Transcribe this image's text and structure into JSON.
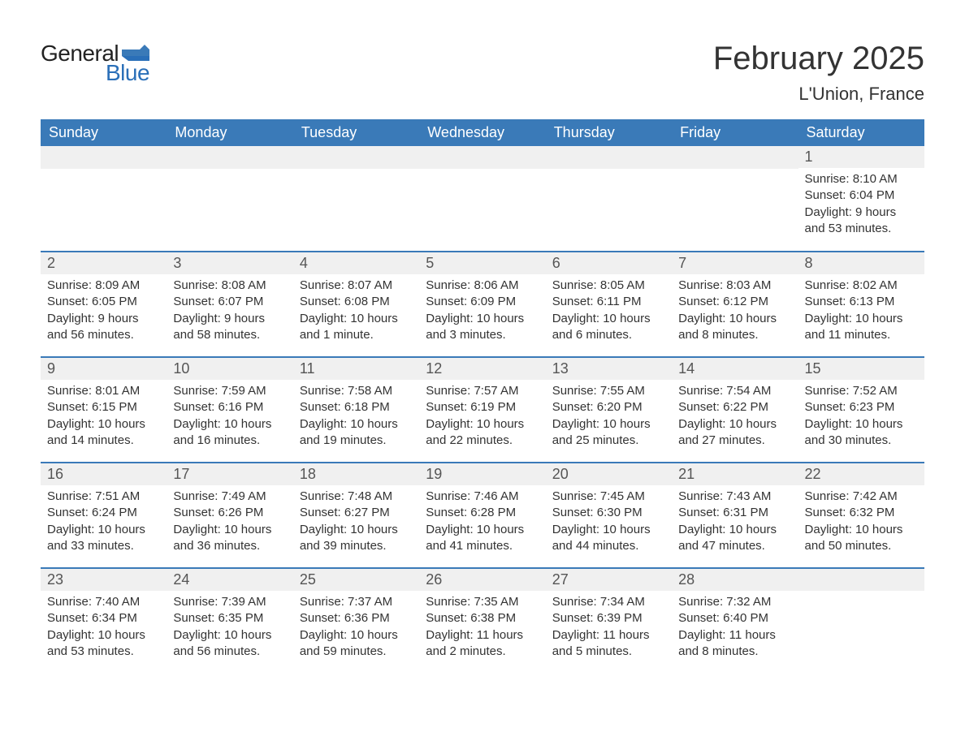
{
  "brand": {
    "word1": "General",
    "word2": "Blue",
    "text_color": "#222222",
    "accent_color": "#2a6fb8",
    "flag_color": "#3a7ab8"
  },
  "header": {
    "title": "February 2025",
    "location": "L'Union, France",
    "title_fontsize": 40,
    "location_fontsize": 22,
    "title_color": "#333333"
  },
  "calendar": {
    "type": "table",
    "columns": [
      "Sunday",
      "Monday",
      "Tuesday",
      "Wednesday",
      "Thursday",
      "Friday",
      "Saturday"
    ],
    "header_bg": "#3a7ab8",
    "header_text_color": "#ffffff",
    "header_fontsize": 18,
    "daynum_bg": "#f0f0f0",
    "daynum_color": "#555555",
    "daynum_fontsize": 18,
    "row_border_color": "#3a7ab8",
    "row_border_width": 2,
    "body_fontsize": 15,
    "body_color": "#333333",
    "background_color": "#ffffff",
    "weeks": [
      [
        null,
        null,
        null,
        null,
        null,
        null,
        {
          "d": "1",
          "sunrise": "Sunrise: 8:10 AM",
          "sunset": "Sunset: 6:04 PM",
          "day1": "Daylight: 9 hours",
          "day2": "and 53 minutes."
        }
      ],
      [
        {
          "d": "2",
          "sunrise": "Sunrise: 8:09 AM",
          "sunset": "Sunset: 6:05 PM",
          "day1": "Daylight: 9 hours",
          "day2": "and 56 minutes."
        },
        {
          "d": "3",
          "sunrise": "Sunrise: 8:08 AM",
          "sunset": "Sunset: 6:07 PM",
          "day1": "Daylight: 9 hours",
          "day2": "and 58 minutes."
        },
        {
          "d": "4",
          "sunrise": "Sunrise: 8:07 AM",
          "sunset": "Sunset: 6:08 PM",
          "day1": "Daylight: 10 hours",
          "day2": "and 1 minute."
        },
        {
          "d": "5",
          "sunrise": "Sunrise: 8:06 AM",
          "sunset": "Sunset: 6:09 PM",
          "day1": "Daylight: 10 hours",
          "day2": "and 3 minutes."
        },
        {
          "d": "6",
          "sunrise": "Sunrise: 8:05 AM",
          "sunset": "Sunset: 6:11 PM",
          "day1": "Daylight: 10 hours",
          "day2": "and 6 minutes."
        },
        {
          "d": "7",
          "sunrise": "Sunrise: 8:03 AM",
          "sunset": "Sunset: 6:12 PM",
          "day1": "Daylight: 10 hours",
          "day2": "and 8 minutes."
        },
        {
          "d": "8",
          "sunrise": "Sunrise: 8:02 AM",
          "sunset": "Sunset: 6:13 PM",
          "day1": "Daylight: 10 hours",
          "day2": "and 11 minutes."
        }
      ],
      [
        {
          "d": "9",
          "sunrise": "Sunrise: 8:01 AM",
          "sunset": "Sunset: 6:15 PM",
          "day1": "Daylight: 10 hours",
          "day2": "and 14 minutes."
        },
        {
          "d": "10",
          "sunrise": "Sunrise: 7:59 AM",
          "sunset": "Sunset: 6:16 PM",
          "day1": "Daylight: 10 hours",
          "day2": "and 16 minutes."
        },
        {
          "d": "11",
          "sunrise": "Sunrise: 7:58 AM",
          "sunset": "Sunset: 6:18 PM",
          "day1": "Daylight: 10 hours",
          "day2": "and 19 minutes."
        },
        {
          "d": "12",
          "sunrise": "Sunrise: 7:57 AM",
          "sunset": "Sunset: 6:19 PM",
          "day1": "Daylight: 10 hours",
          "day2": "and 22 minutes."
        },
        {
          "d": "13",
          "sunrise": "Sunrise: 7:55 AM",
          "sunset": "Sunset: 6:20 PM",
          "day1": "Daylight: 10 hours",
          "day2": "and 25 minutes."
        },
        {
          "d": "14",
          "sunrise": "Sunrise: 7:54 AM",
          "sunset": "Sunset: 6:22 PM",
          "day1": "Daylight: 10 hours",
          "day2": "and 27 minutes."
        },
        {
          "d": "15",
          "sunrise": "Sunrise: 7:52 AM",
          "sunset": "Sunset: 6:23 PM",
          "day1": "Daylight: 10 hours",
          "day2": "and 30 minutes."
        }
      ],
      [
        {
          "d": "16",
          "sunrise": "Sunrise: 7:51 AM",
          "sunset": "Sunset: 6:24 PM",
          "day1": "Daylight: 10 hours",
          "day2": "and 33 minutes."
        },
        {
          "d": "17",
          "sunrise": "Sunrise: 7:49 AM",
          "sunset": "Sunset: 6:26 PM",
          "day1": "Daylight: 10 hours",
          "day2": "and 36 minutes."
        },
        {
          "d": "18",
          "sunrise": "Sunrise: 7:48 AM",
          "sunset": "Sunset: 6:27 PM",
          "day1": "Daylight: 10 hours",
          "day2": "and 39 minutes."
        },
        {
          "d": "19",
          "sunrise": "Sunrise: 7:46 AM",
          "sunset": "Sunset: 6:28 PM",
          "day1": "Daylight: 10 hours",
          "day2": "and 41 minutes."
        },
        {
          "d": "20",
          "sunrise": "Sunrise: 7:45 AM",
          "sunset": "Sunset: 6:30 PM",
          "day1": "Daylight: 10 hours",
          "day2": "and 44 minutes."
        },
        {
          "d": "21",
          "sunrise": "Sunrise: 7:43 AM",
          "sunset": "Sunset: 6:31 PM",
          "day1": "Daylight: 10 hours",
          "day2": "and 47 minutes."
        },
        {
          "d": "22",
          "sunrise": "Sunrise: 7:42 AM",
          "sunset": "Sunset: 6:32 PM",
          "day1": "Daylight: 10 hours",
          "day2": "and 50 minutes."
        }
      ],
      [
        {
          "d": "23",
          "sunrise": "Sunrise: 7:40 AM",
          "sunset": "Sunset: 6:34 PM",
          "day1": "Daylight: 10 hours",
          "day2": "and 53 minutes."
        },
        {
          "d": "24",
          "sunrise": "Sunrise: 7:39 AM",
          "sunset": "Sunset: 6:35 PM",
          "day1": "Daylight: 10 hours",
          "day2": "and 56 minutes."
        },
        {
          "d": "25",
          "sunrise": "Sunrise: 7:37 AM",
          "sunset": "Sunset: 6:36 PM",
          "day1": "Daylight: 10 hours",
          "day2": "and 59 minutes."
        },
        {
          "d": "26",
          "sunrise": "Sunrise: 7:35 AM",
          "sunset": "Sunset: 6:38 PM",
          "day1": "Daylight: 11 hours",
          "day2": "and 2 minutes."
        },
        {
          "d": "27",
          "sunrise": "Sunrise: 7:34 AM",
          "sunset": "Sunset: 6:39 PM",
          "day1": "Daylight: 11 hours",
          "day2": "and 5 minutes."
        },
        {
          "d": "28",
          "sunrise": "Sunrise: 7:32 AM",
          "sunset": "Sunset: 6:40 PM",
          "day1": "Daylight: 11 hours",
          "day2": "and 8 minutes."
        },
        null
      ]
    ]
  }
}
